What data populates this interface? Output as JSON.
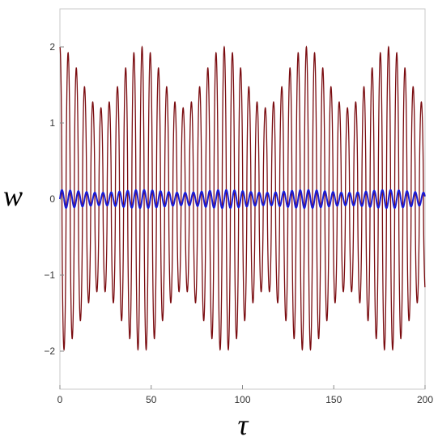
{
  "chart_data": {
    "type": "line",
    "title": "",
    "xlabel": "τ",
    "ylabel": "w",
    "xlim": [
      0,
      200
    ],
    "ylim": [
      -2.5,
      2.5
    ],
    "x_ticks": [
      0,
      50,
      100,
      150,
      200
    ],
    "y_ticks": [
      -2,
      -1,
      0,
      1,
      2
    ],
    "x_tick_labels": [
      "0",
      "50",
      "100",
      "150",
      "200"
    ],
    "y_tick_labels": [
      "−2",
      "−1",
      "0",
      "1",
      "2"
    ],
    "grid": false,
    "legend": "none",
    "series": [
      {
        "color": "#7a0c10",
        "description_values": {
          "carrier_period": 4.5,
          "envelope_period": 45,
          "amplitude_max": 2.0,
          "amplitude_min": 1.2
        }
      },
      {
        "color": "#1a1ad6",
        "description_values": {
          "carrier_period": 4.5,
          "amplitude": 0.12
        }
      }
    ]
  }
}
